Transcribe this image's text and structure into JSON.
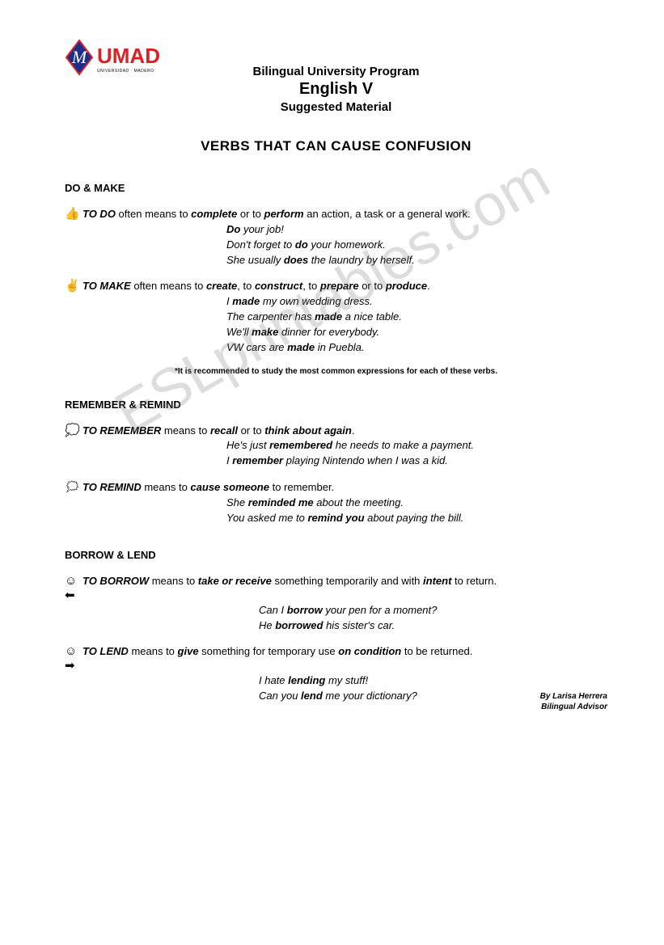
{
  "watermark": "ESLprintables.com",
  "logo": {
    "brand_text": "UMAD",
    "brand_subtext": "UNIVERSIDAD · MADERO",
    "diamond_fill": "#1a2e8a",
    "diamond_stroke": "#dd1f26",
    "m_letter": "M",
    "text_color": "#dd1f26"
  },
  "header": {
    "line1": "Bilingual University Program",
    "line2": "English V",
    "line3": "Suggested Material"
  },
  "title": "VERBS THAT CAN CAUSE CONFUSION",
  "sections": [
    {
      "head": "DO & MAKE",
      "entries": [
        {
          "bullet": "👍",
          "def_html": "<b><i>TO DO</i></b> often means to <b><i>complete</i></b> or to <b><i>perform</i></b> an action, a task or a general work.",
          "examples_html": "<b>Do</b> your job!<br><i>Don't forget to <b>do</b> your homework.</i><br><i>She usually <b>does</b> the laundry by herself.</i>",
          "ex_class": "examples"
        },
        {
          "bullet": "✌",
          "def_html": "<b><i>TO MAKE</i></b> often means to <b><i>create</i></b>, to <b><i>construct</i></b>, to <b><i>prepare</i></b> or to <b><i>produce</i></b>.",
          "examples_html": "I <b>made</b> my own wedding dress.<br>The carpenter has <b>made</b> a nice table.<br>We'll <b>make</b> dinner for everybody.<br>VW cars are <b>made</b> in Puebla.",
          "ex_class": "examples"
        }
      ],
      "note": "*It is recommended to study the most common expressions for each of these verbs."
    },
    {
      "head": "REMEMBER & REMIND",
      "entries": [
        {
          "bullet": "💭",
          "def_html": "<b><i>TO REMEMBER</i></b> means to <b><i>recall</i></b> or to <b><i>think about again</i></b>.",
          "examples_html": "<i>He's just <b>remembered</b> he needs to make a payment.</i><br><i>I <b>remember</b> playing Nintendo when I was a kid.</i>",
          "ex_class": "examples"
        },
        {
          "bullet": "🗯",
          "def_html": "<b><i>TO REMIND</i></b> means to <b><i>cause someone</i></b> to remember.",
          "examples_html": "She <b>reminded me</b> about the meeting.<br>You asked me to <b><i>remind you</i></b> about paying the bill.",
          "ex_class": "examples"
        }
      ]
    },
    {
      "head": "BORROW & LEND",
      "entries": [
        {
          "bullet": "☺⬅",
          "def_html": "<b><i>TO BORROW</i></b> means to <b><i>take or receive</i></b> something temporarily and with <b><i>intent</i></b> to return.",
          "examples_html": "Can I <b><i>borrow</i></b> your pen for a moment?<br>He <b>borrowed</b> his sister's car.",
          "ex_class": "examples examples-wide"
        },
        {
          "bullet": "☺➡",
          "def_html": "<b><i>TO LEND</i></b> means to <b><i>give</i></b> something for temporary use <b><i>on condition</i></b> to be returned.",
          "examples_html": "I hate <b>lending</b> my stuff!<br>Can you <b>lend</b> me your dictionary?",
          "ex_class": "examples examples-wide"
        }
      ]
    }
  ],
  "footer": {
    "line1": "By Larisa Herrera",
    "line2": "Bilingual Advisor"
  }
}
